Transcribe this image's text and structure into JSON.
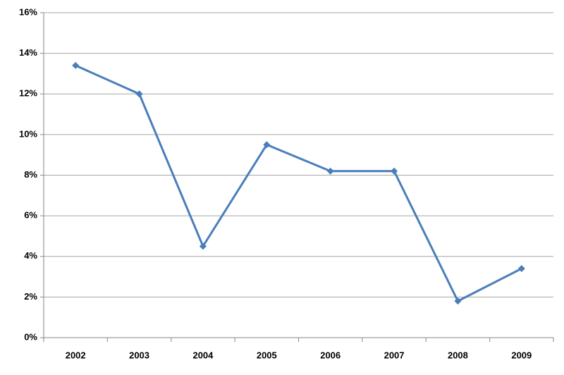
{
  "chart_data": {
    "type": "line",
    "categories": [
      "2002",
      "2003",
      "2004",
      "2005",
      "2006",
      "2007",
      "2008",
      "2009"
    ],
    "series": [
      {
        "color": "#4a7ebb",
        "values": [
          13.4,
          12.0,
          4.5,
          9.5,
          8.2,
          8.2,
          1.8,
          3.4
        ]
      }
    ],
    "ylim": [
      0,
      16
    ],
    "yticks": [
      {
        "value": 0,
        "label": "0%"
      },
      {
        "value": 2,
        "label": "2%"
      },
      {
        "value": 4,
        "label": "4%"
      },
      {
        "value": 6,
        "label": "6%"
      },
      {
        "value": 8,
        "label": "8%"
      },
      {
        "value": 10,
        "label": "10%"
      },
      {
        "value": 12,
        "label": "12%"
      },
      {
        "value": 14,
        "label": "14%"
      },
      {
        "value": 16,
        "label": "16%"
      }
    ],
    "grid": true
  }
}
